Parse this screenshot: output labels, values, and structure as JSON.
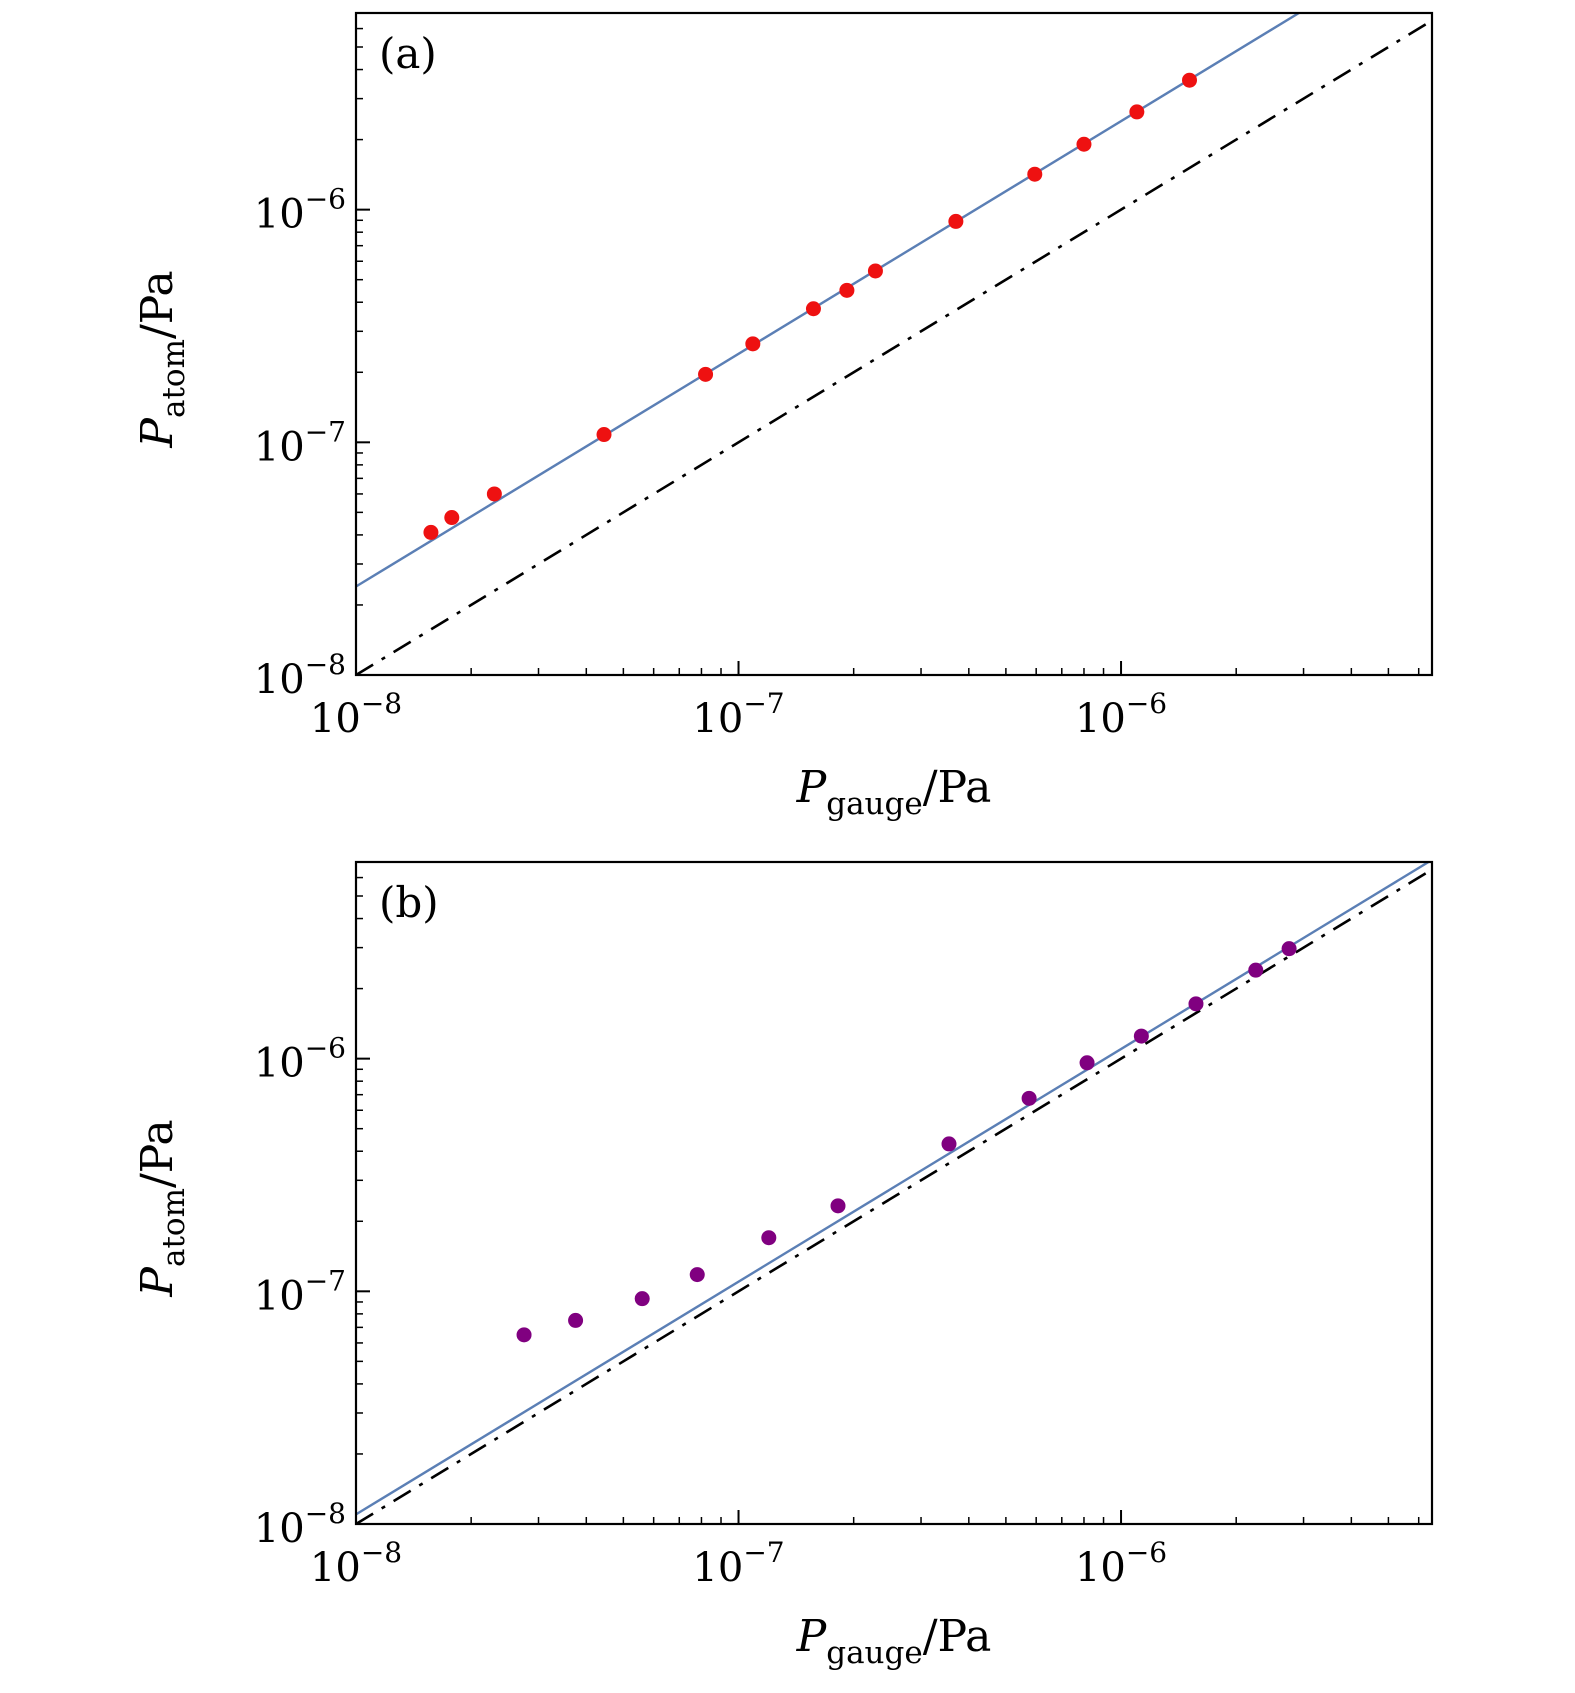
{
  "figure": {
    "chart_data": [
      {
        "type": "scatter",
        "panel_label": "(a)",
        "xlabel": {
          "symbol": "P",
          "subscript": "gauge",
          "unit": "/Pa"
        },
        "ylabel": {
          "symbol": "P",
          "subscript": "atom",
          "unit": "/Pa"
        },
        "xscale": "log",
        "yscale": "log",
        "xlim": [
          1e-08,
          6.5e-06
        ],
        "ylim": [
          1e-08,
          7e-06
        ],
        "x_ticks": [
          {
            "value": 1e-08,
            "base": "10",
            "exp": "−8"
          },
          {
            "value": 1e-07,
            "base": "10",
            "exp": "−7"
          },
          {
            "value": 1e-06,
            "base": "10",
            "exp": "−6"
          }
        ],
        "y_ticks": [
          {
            "value": 1e-08,
            "base": "10",
            "exp": "−8"
          },
          {
            "value": 1e-07,
            "base": "10",
            "exp": "−7"
          },
          {
            "value": 1e-06,
            "base": "10",
            "exp": "−6"
          }
        ],
        "grid": false,
        "series": [
          {
            "kind": "points",
            "color": "#ee1111",
            "x": [
              1.57e-08,
              1.78e-08,
              2.3e-08,
              4.45e-08,
              8.2e-08,
              1.09e-07,
              1.57e-07,
              1.92e-07,
              2.28e-07,
              3.7e-07,
              5.95e-07,
              8e-07,
              1.1e-06,
              1.51e-06
            ],
            "y": [
              4.1e-08,
              4.75e-08,
              6e-08,
              1.08e-07,
              1.96e-07,
              2.65e-07,
              3.75e-07,
              4.5e-07,
              5.45e-07,
              8.9e-07,
              1.42e-06,
              1.91e-06,
              2.63e-06,
              3.6e-06
            ]
          },
          {
            "kind": "line",
            "style": "solid",
            "color": "#5b7fb5",
            "x": [
              1e-08,
              6.5e-06
            ],
            "y": [
              2.4e-08,
              1.56e-05
            ]
          },
          {
            "kind": "line",
            "style": "dash-dot",
            "color": "#000000",
            "x": [
              1e-08,
              6.5e-06
            ],
            "y": [
              1e-08,
              6.5e-06
            ]
          }
        ]
      },
      {
        "type": "scatter",
        "panel_label": "(b)",
        "xlabel": {
          "symbol": "P",
          "subscript": "gauge",
          "unit": "/Pa"
        },
        "ylabel": {
          "symbol": "P",
          "subscript": "atom",
          "unit": "/Pa"
        },
        "xscale": "log",
        "yscale": "log",
        "xlim": [
          1e-08,
          6.5e-06
        ],
        "ylim": [
          1e-08,
          7e-06
        ],
        "x_ticks": [
          {
            "value": 1e-08,
            "base": "10",
            "exp": "−8"
          },
          {
            "value": 1e-07,
            "base": "10",
            "exp": "−7"
          },
          {
            "value": 1e-06,
            "base": "10",
            "exp": "−6"
          }
        ],
        "y_ticks": [
          {
            "value": 1e-08,
            "base": "10",
            "exp": "−8"
          },
          {
            "value": 1e-07,
            "base": "10",
            "exp": "−7"
          },
          {
            "value": 1e-06,
            "base": "10",
            "exp": "−6"
          }
        ],
        "grid": false,
        "series": [
          {
            "kind": "points",
            "color": "#800080",
            "x": [
              2.75e-08,
              3.75e-08,
              5.6e-08,
              7.8e-08,
              1.2e-07,
              1.82e-07,
              3.55e-07,
              5.75e-07,
              8.15e-07,
              1.13e-06,
              1.57e-06,
              2.25e-06,
              2.75e-06
            ],
            "y": [
              6.5e-08,
              7.5e-08,
              9.3e-08,
              1.18e-07,
              1.7e-07,
              2.33e-07,
              4.3e-07,
              6.75e-07,
              9.6e-07,
              1.25e-06,
              1.72e-06,
              2.4e-06,
              2.97e-06
            ]
          },
          {
            "kind": "line",
            "style": "solid",
            "color": "#5b7fb5",
            "x": [
              1e-08,
              6.5e-06
            ],
            "y": [
              1.1e-08,
              7.15e-06
            ]
          },
          {
            "kind": "line",
            "style": "dash-dot",
            "color": "#000000",
            "x": [
              1e-08,
              6.5e-06
            ],
            "y": [
              1e-08,
              6.5e-06
            ]
          }
        ]
      }
    ]
  }
}
